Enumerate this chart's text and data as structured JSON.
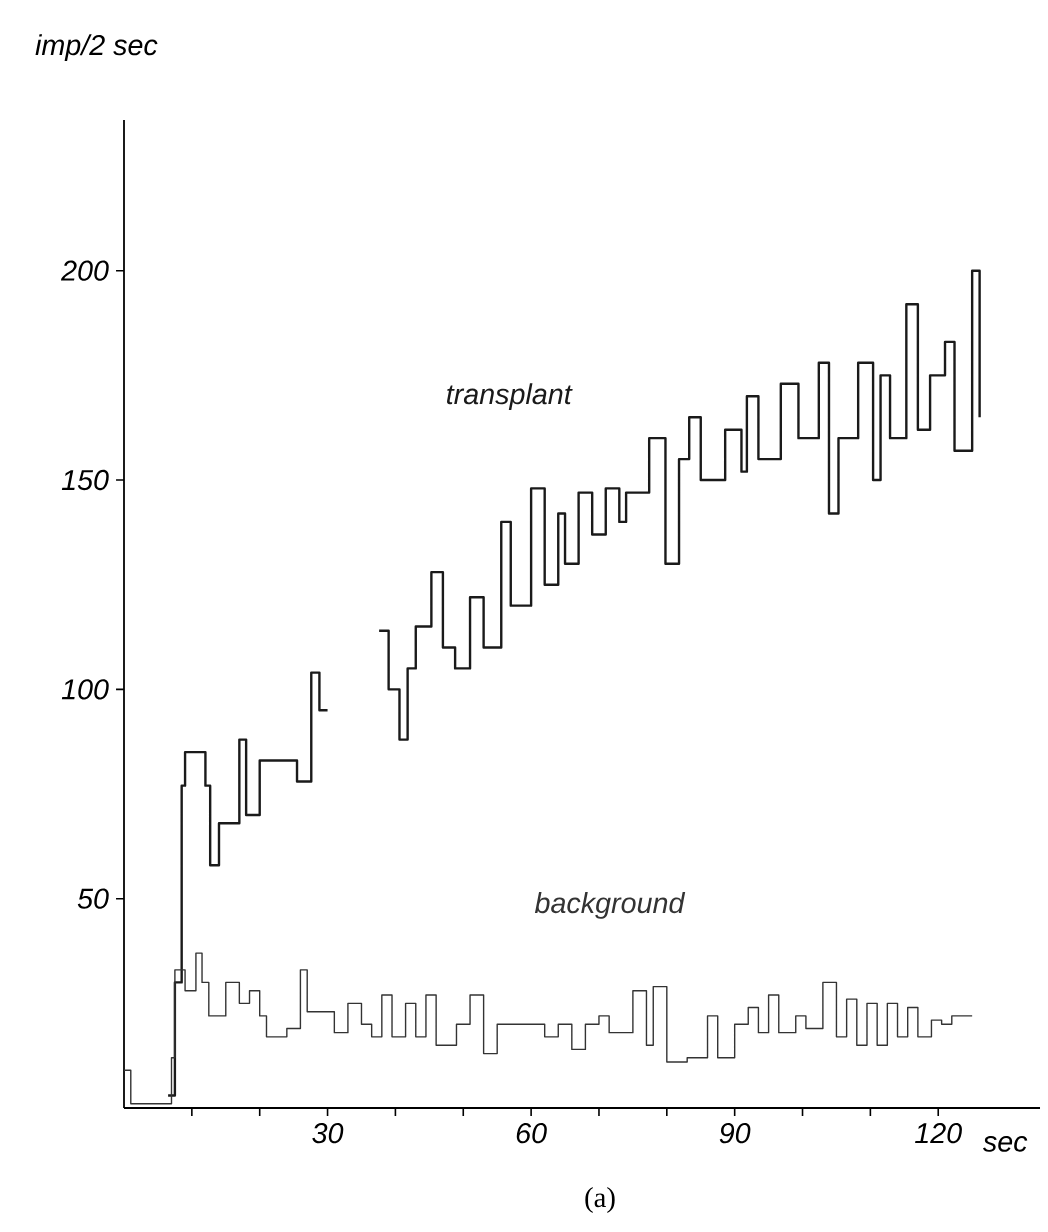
{
  "chart_data": {
    "type": "step",
    "xlabel": "sec",
    "ylabel": "imp/2 sec",
    "annotations": [
      "(a)"
    ],
    "xlim": [
      0,
      135
    ],
    "ylim": [
      0,
      236
    ],
    "xticks": [
      {
        "value": 10,
        "label": null
      },
      {
        "value": 20,
        "label": null
      },
      30,
      {
        "value": 40,
        "label": null
      },
      {
        "value": 50,
        "label": null
      },
      60,
      {
        "value": 70,
        "label": null
      },
      {
        "value": 80,
        "label": null
      },
      90,
      {
        "value": 100,
        "label": null
      },
      {
        "value": 110,
        "label": null
      },
      120
    ],
    "yticks": [
      50,
      100,
      150,
      200
    ],
    "grid": false,
    "legend": false,
    "marker": "none",
    "line_style": "solid",
    "series": [
      {
        "name": "transplant",
        "color": "#1a1a1a",
        "x": [
          6.5,
          7.5,
          8.5,
          9,
          12,
          12.7,
          14,
          17,
          18,
          20,
          25.5,
          27.6,
          28.8,
          30,
          32,
          37.6,
          39,
          40.6,
          41.8,
          43,
          45.3,
          47,
          48.8,
          51,
          53,
          55.6,
          57,
          60,
          62,
          64,
          65,
          67,
          69,
          71,
          73,
          74,
          77.4,
          79.8,
          81.8,
          83.3,
          85,
          88.6,
          91,
          91.8,
          93.5,
          96.8,
          99.4,
          102.4,
          103.9,
          105.3,
          108.2,
          110.4,
          111.5,
          112.9,
          115.3,
          117,
          118.8,
          121,
          122.4,
          125,
          126.1
        ],
        "values": [
          3,
          30,
          77,
          85,
          77,
          58,
          68,
          88,
          70,
          83,
          78,
          104,
          95,
          95,
          null,
          114,
          100,
          88,
          105,
          115,
          128,
          110,
          105,
          122,
          110,
          140,
          120,
          148,
          125,
          142,
          130,
          147,
          137,
          148,
          140,
          147,
          160,
          130,
          155,
          165,
          150,
          162,
          152,
          170,
          155,
          173,
          160,
          178,
          142,
          160,
          178,
          150,
          175,
          160,
          192,
          162,
          175,
          183,
          157,
          200,
          165
        ]
      },
      {
        "name": "background",
        "color": "#333333",
        "x": [
          0,
          1,
          7,
          7.5,
          9,
          10.6,
          11.5,
          12.5,
          15,
          17,
          18.5,
          20,
          21,
          24,
          26,
          27,
          31,
          33,
          35,
          36.5,
          38,
          39.5,
          41.5,
          43,
          44.5,
          46,
          49,
          51,
          53,
          55,
          62,
          64,
          66,
          68,
          70,
          71.5,
          75,
          77,
          78,
          80,
          83,
          86,
          87.5,
          90,
          92,
          93.5,
          95,
          96.5,
          99,
          100.5,
          103,
          105,
          106.5,
          108,
          109.5,
          111,
          112.5,
          114,
          115.5,
          117,
          119,
          120.5,
          122,
          125
        ],
        "values": [
          9,
          1,
          12,
          33,
          28,
          37,
          30,
          22,
          30,
          25,
          28,
          22,
          17,
          19,
          33,
          23,
          18,
          25,
          20,
          17,
          27,
          17,
          25,
          17,
          27,
          15,
          20,
          27,
          13,
          20,
          17,
          20,
          14,
          20,
          22,
          18,
          28,
          15,
          29,
          11,
          12,
          22,
          12,
          20,
          24,
          18,
          27,
          18,
          22,
          19,
          30,
          17,
          26,
          15,
          25,
          15,
          25,
          17,
          24,
          17,
          21,
          20,
          22,
          22
        ]
      }
    ]
  }
}
